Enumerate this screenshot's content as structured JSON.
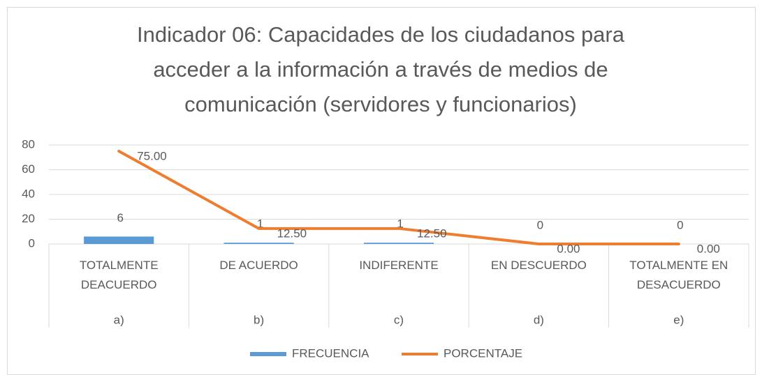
{
  "chart_data": {
    "type": "bar-line",
    "title": "Indicador 06: Capacidades de los ciudadanos para acceder a la información a través de medios de comunicación (servidores y funcionarios)",
    "categories": [
      "TOTALMENTE DEACUERDO",
      "DE ACUERDO",
      "INDIFERENTE",
      "EN DESCUERDO",
      "TOTALMENTE EN DESACUERDO"
    ],
    "subcategories": [
      "a)",
      "b)",
      "c)",
      "d)",
      "e)"
    ],
    "series": [
      {
        "name": "FRECUENCIA",
        "type": "bar",
        "color": "#5b9bd5",
        "values": [
          6,
          1,
          1,
          0,
          0
        ]
      },
      {
        "name": "PORCENTAJE",
        "type": "line",
        "color": "#ed7d31",
        "values": [
          75,
          12.5,
          12.5,
          0,
          0
        ],
        "value_labels": [
          "75.00",
          "12.50",
          "12.50",
          "0.00",
          "0.00"
        ]
      }
    ],
    "ylim": [
      0,
      80
    ],
    "yticks": [
      0,
      20,
      40,
      60,
      80
    ],
    "grid": true,
    "legend": "bottom"
  }
}
